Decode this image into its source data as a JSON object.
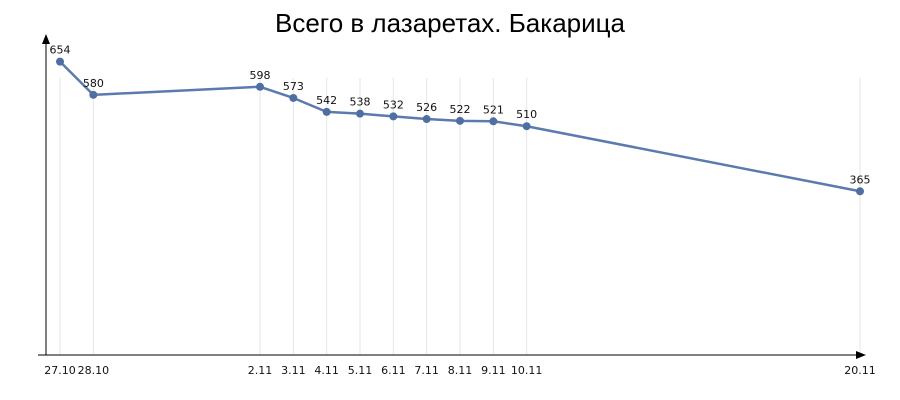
{
  "chart_data": {
    "type": "line",
    "title": "Всего в лазаретах. Бакарица",
    "x": [
      "27.10",
      "28.10",
      "2.11",
      "3.11",
      "4.11",
      "5.11",
      "6.11",
      "7.11",
      "8.11",
      "9.11",
      "10.11",
      "20.11"
    ],
    "x_days": [
      0,
      1,
      6,
      7,
      8,
      9,
      10,
      11,
      12,
      13,
      14,
      24
    ],
    "series": [
      {
        "values": [
          654,
          580,
          598,
          573,
          542,
          538,
          532,
          526,
          522,
          521,
          510,
          365
        ]
      }
    ],
    "xlabel": "",
    "ylabel": "",
    "ylim": [
      0,
      700
    ],
    "grid": "vertical",
    "legend": "none",
    "line_color": "#5b7aad",
    "marker_color": "#4f6fa3",
    "grid_color": "#e6e6e6",
    "axis_color": "#000000"
  }
}
